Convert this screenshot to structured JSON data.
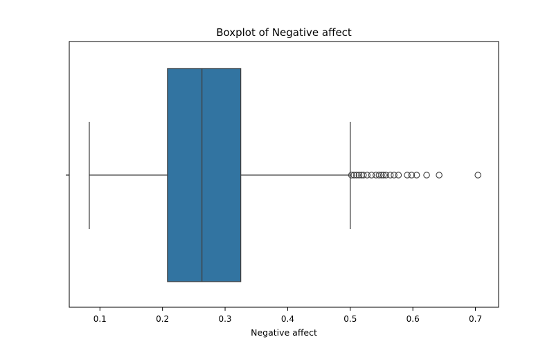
{
  "chart_data": {
    "type": "boxplot",
    "title": "Boxplot of Negative affect",
    "xlabel": "Negative affect",
    "ylabel": "",
    "xlim": [
      0.051,
      0.737
    ],
    "xticks": [
      0.1,
      0.2,
      0.3,
      0.4,
      0.5,
      0.6,
      0.7
    ],
    "xtick_labels": [
      "0.1",
      "0.2",
      "0.3",
      "0.4",
      "0.5",
      "0.6",
      "0.7"
    ],
    "orientation": "horizontal",
    "grid": false,
    "box": {
      "whisker_low": 0.083,
      "q1": 0.208,
      "median": 0.263,
      "q3": 0.325,
      "whisker_high": 0.5
    },
    "outliers": [
      0.502,
      0.506,
      0.51,
      0.514,
      0.518,
      0.521,
      0.527,
      0.534,
      0.541,
      0.546,
      0.55,
      0.553,
      0.557,
      0.564,
      0.57,
      0.577,
      0.591,
      0.598,
      0.606,
      0.622,
      0.642,
      0.704
    ],
    "colors": {
      "box_fill": "#3274a1",
      "line": "#3f3f3f",
      "outlier_edge": "#3f3f3f"
    }
  }
}
